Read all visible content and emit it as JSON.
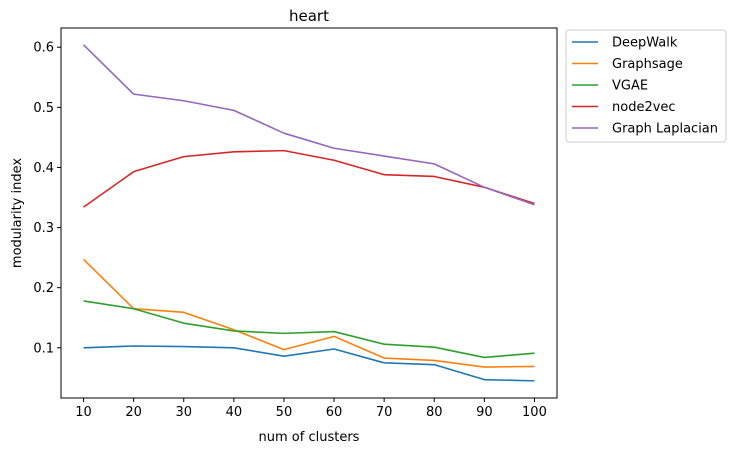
{
  "chart_data": {
    "type": "line",
    "title": "heart",
    "xlabel": "num of clusters",
    "ylabel": "modularity index",
    "x": [
      10,
      20,
      30,
      40,
      50,
      60,
      70,
      80,
      90,
      100
    ],
    "xticks": [
      "10",
      "20",
      "30",
      "40",
      "50",
      "60",
      "70",
      "80",
      "90",
      "100"
    ],
    "yticks": [
      0.1,
      0.2,
      0.3,
      0.4,
      0.5,
      0.6
    ],
    "ytick_labels": [
      "0.1",
      "0.2",
      "0.3",
      "0.4",
      "0.5",
      "0.6"
    ],
    "xlim": [
      5.5,
      104.5
    ],
    "ylim": [
      0.0165,
      0.632
    ],
    "grid": false,
    "legend_position": "outside-upper-right",
    "series": [
      {
        "name": "DeepWalk",
        "color": "#1f77b4",
        "values": [
          0.1,
          0.103,
          0.102,
          0.1,
          0.086,
          0.098,
          0.075,
          0.072,
          0.047,
          0.045
        ]
      },
      {
        "name": "Graphsage",
        "color": "#ff7f0e",
        "values": [
          0.247,
          0.165,
          0.159,
          0.13,
          0.097,
          0.119,
          0.083,
          0.079,
          0.068,
          0.069
        ]
      },
      {
        "name": "VGAE",
        "color": "#2ca02c",
        "values": [
          0.178,
          0.165,
          0.141,
          0.128,
          0.124,
          0.127,
          0.106,
          0.101,
          0.084,
          0.091
        ]
      },
      {
        "name": "node2vec",
        "color": "#d62728",
        "values": [
          0.334,
          0.393,
          0.418,
          0.426,
          0.428,
          0.412,
          0.388,
          0.385,
          0.367,
          0.34
        ]
      },
      {
        "name": "Graph Laplacian",
        "color": "#9467bd",
        "values": [
          0.604,
          0.522,
          0.511,
          0.495,
          0.457,
          0.432,
          0.419,
          0.406,
          0.367,
          0.338
        ]
      }
    ]
  }
}
